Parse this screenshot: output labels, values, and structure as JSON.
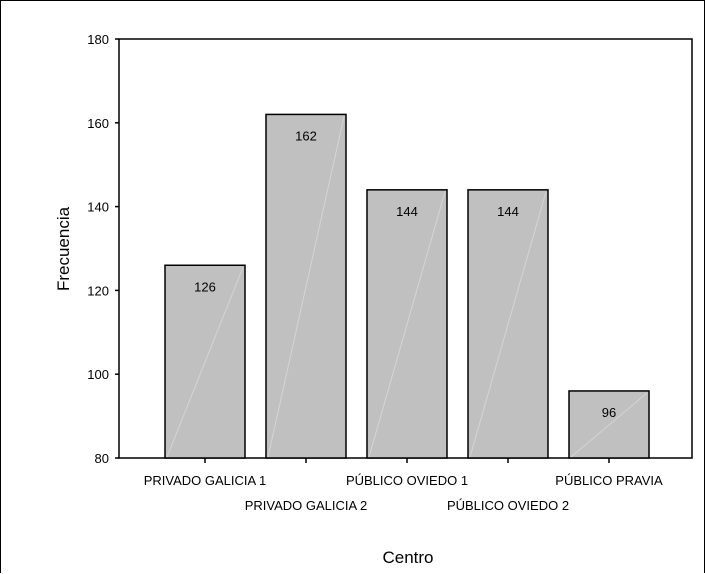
{
  "chart_data": {
    "type": "bar",
    "title": "",
    "xlabel": "Centro",
    "ylabel": "Frecuencia",
    "categories": [
      "PRIVADO GALICIA 1",
      "PRIVADO GALICIA 2",
      "PÚBLICO OVIEDO 1",
      "PÚBLICO OVIEDO 2",
      "PÚBLICO PRAVIA"
    ],
    "values": [
      126,
      162,
      144,
      144,
      96
    ],
    "data_labels": [
      "126",
      "162",
      "144",
      "144",
      "96"
    ],
    "ylim": [
      80,
      180
    ],
    "yticks": [
      80,
      100,
      120,
      140,
      160,
      180
    ],
    "grid": false,
    "legend": "none",
    "colors": {
      "bar_fill": "#c0c0c0",
      "bar_stroke": "#000000",
      "axis": "#000000"
    }
  }
}
